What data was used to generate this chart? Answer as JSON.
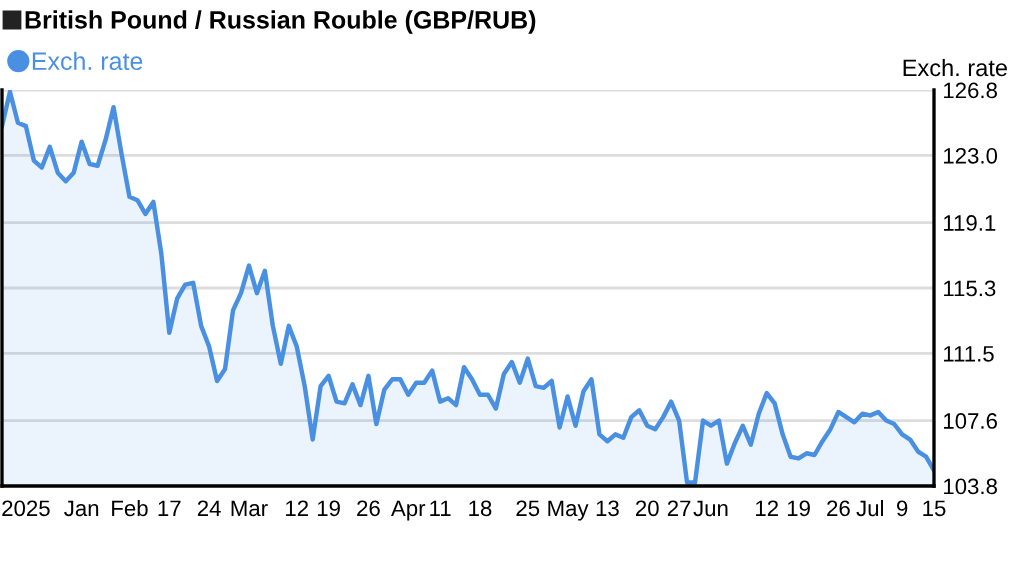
{
  "chart_data": {
    "type": "area",
    "title": "British Pound / Russian Rouble (GBP/RUB)",
    "ylabel": "Exch. rate",
    "categories": [
      null,
      null,
      null,
      "2025",
      null,
      null,
      null,
      null,
      null,
      null,
      "Jan",
      null,
      null,
      null,
      null,
      null,
      "Feb",
      null,
      null,
      null,
      null,
      "17",
      null,
      null,
      null,
      null,
      "24",
      null,
      null,
      null,
      null,
      "Mar",
      null,
      null,
      null,
      null,
      null,
      "12",
      null,
      null,
      null,
      "19",
      null,
      null,
      null,
      null,
      "26",
      null,
      null,
      null,
      null,
      "Apr",
      null,
      null,
      null,
      "11",
      null,
      null,
      null,
      null,
      "18",
      null,
      null,
      null,
      null,
      null,
      "25",
      null,
      null,
      null,
      null,
      "May",
      null,
      null,
      null,
      null,
      "13",
      null,
      null,
      null,
      null,
      "20",
      null,
      null,
      null,
      "27",
      null,
      null,
      null,
      "Jun",
      null,
      null,
      null,
      null,
      null,
      null,
      "12",
      null,
      null,
      null,
      "19",
      null,
      null,
      null,
      null,
      "26",
      null,
      null,
      null,
      "Jul",
      null,
      null,
      null,
      "9",
      null,
      null,
      null,
      "15"
    ],
    "series": [
      {
        "name": "Exch. rate",
        "color": "#4a90e2",
        "values": [
          124.7,
          126.7,
          124.9,
          124.7,
          122.7,
          122.3,
          123.5,
          122.0,
          121.5,
          122.0,
          123.8,
          122.5,
          122.4,
          123.9,
          125.8,
          123.1,
          120.6,
          120.4,
          119.6,
          120.3,
          117.3,
          112.7,
          114.7,
          115.5,
          115.6,
          113.1,
          111.9,
          109.9,
          110.6,
          114.0,
          115.0,
          116.6,
          115.0,
          116.3,
          113.1,
          110.9,
          113.1,
          111.9,
          109.6,
          106.5,
          109.6,
          110.2,
          108.7,
          108.6,
          109.7,
          108.5,
          110.2,
          107.4,
          109.4,
          110.0,
          110.0,
          109.1,
          109.8,
          109.8,
          110.5,
          108.7,
          108.9,
          108.5,
          110.7,
          110.0,
          109.1,
          109.1,
          108.3,
          110.3,
          111.0,
          109.8,
          111.2,
          109.6,
          109.5,
          109.9,
          107.2,
          109.0,
          107.3,
          109.3,
          110.0,
          106.8,
          106.4,
          106.8,
          106.6,
          107.8,
          108.2,
          107.3,
          107.1,
          107.8,
          108.7,
          107.6,
          104.0,
          104.0,
          107.6,
          107.3,
          107.6,
          105.1,
          106.3,
          107.3,
          106.2,
          108.0,
          109.2,
          108.6,
          106.8,
          105.5,
          105.4,
          105.7,
          105.6,
          106.4,
          107.1,
          108.1,
          107.8,
          107.5,
          108.0,
          107.9,
          108.1,
          107.6,
          107.4,
          106.8,
          106.5,
          105.8,
          105.5,
          104.7
        ]
      }
    ],
    "ylim": [
      103.8,
      126.8
    ],
    "yticks": [
      103.8,
      107.6,
      111.5,
      115.3,
      119.1,
      {
        "value": 123.0,
        "label": "123.0"
      },
      126.8
    ],
    "grid": "y",
    "legend": "top left",
    "marker": "none",
    "line_style": "solid"
  }
}
